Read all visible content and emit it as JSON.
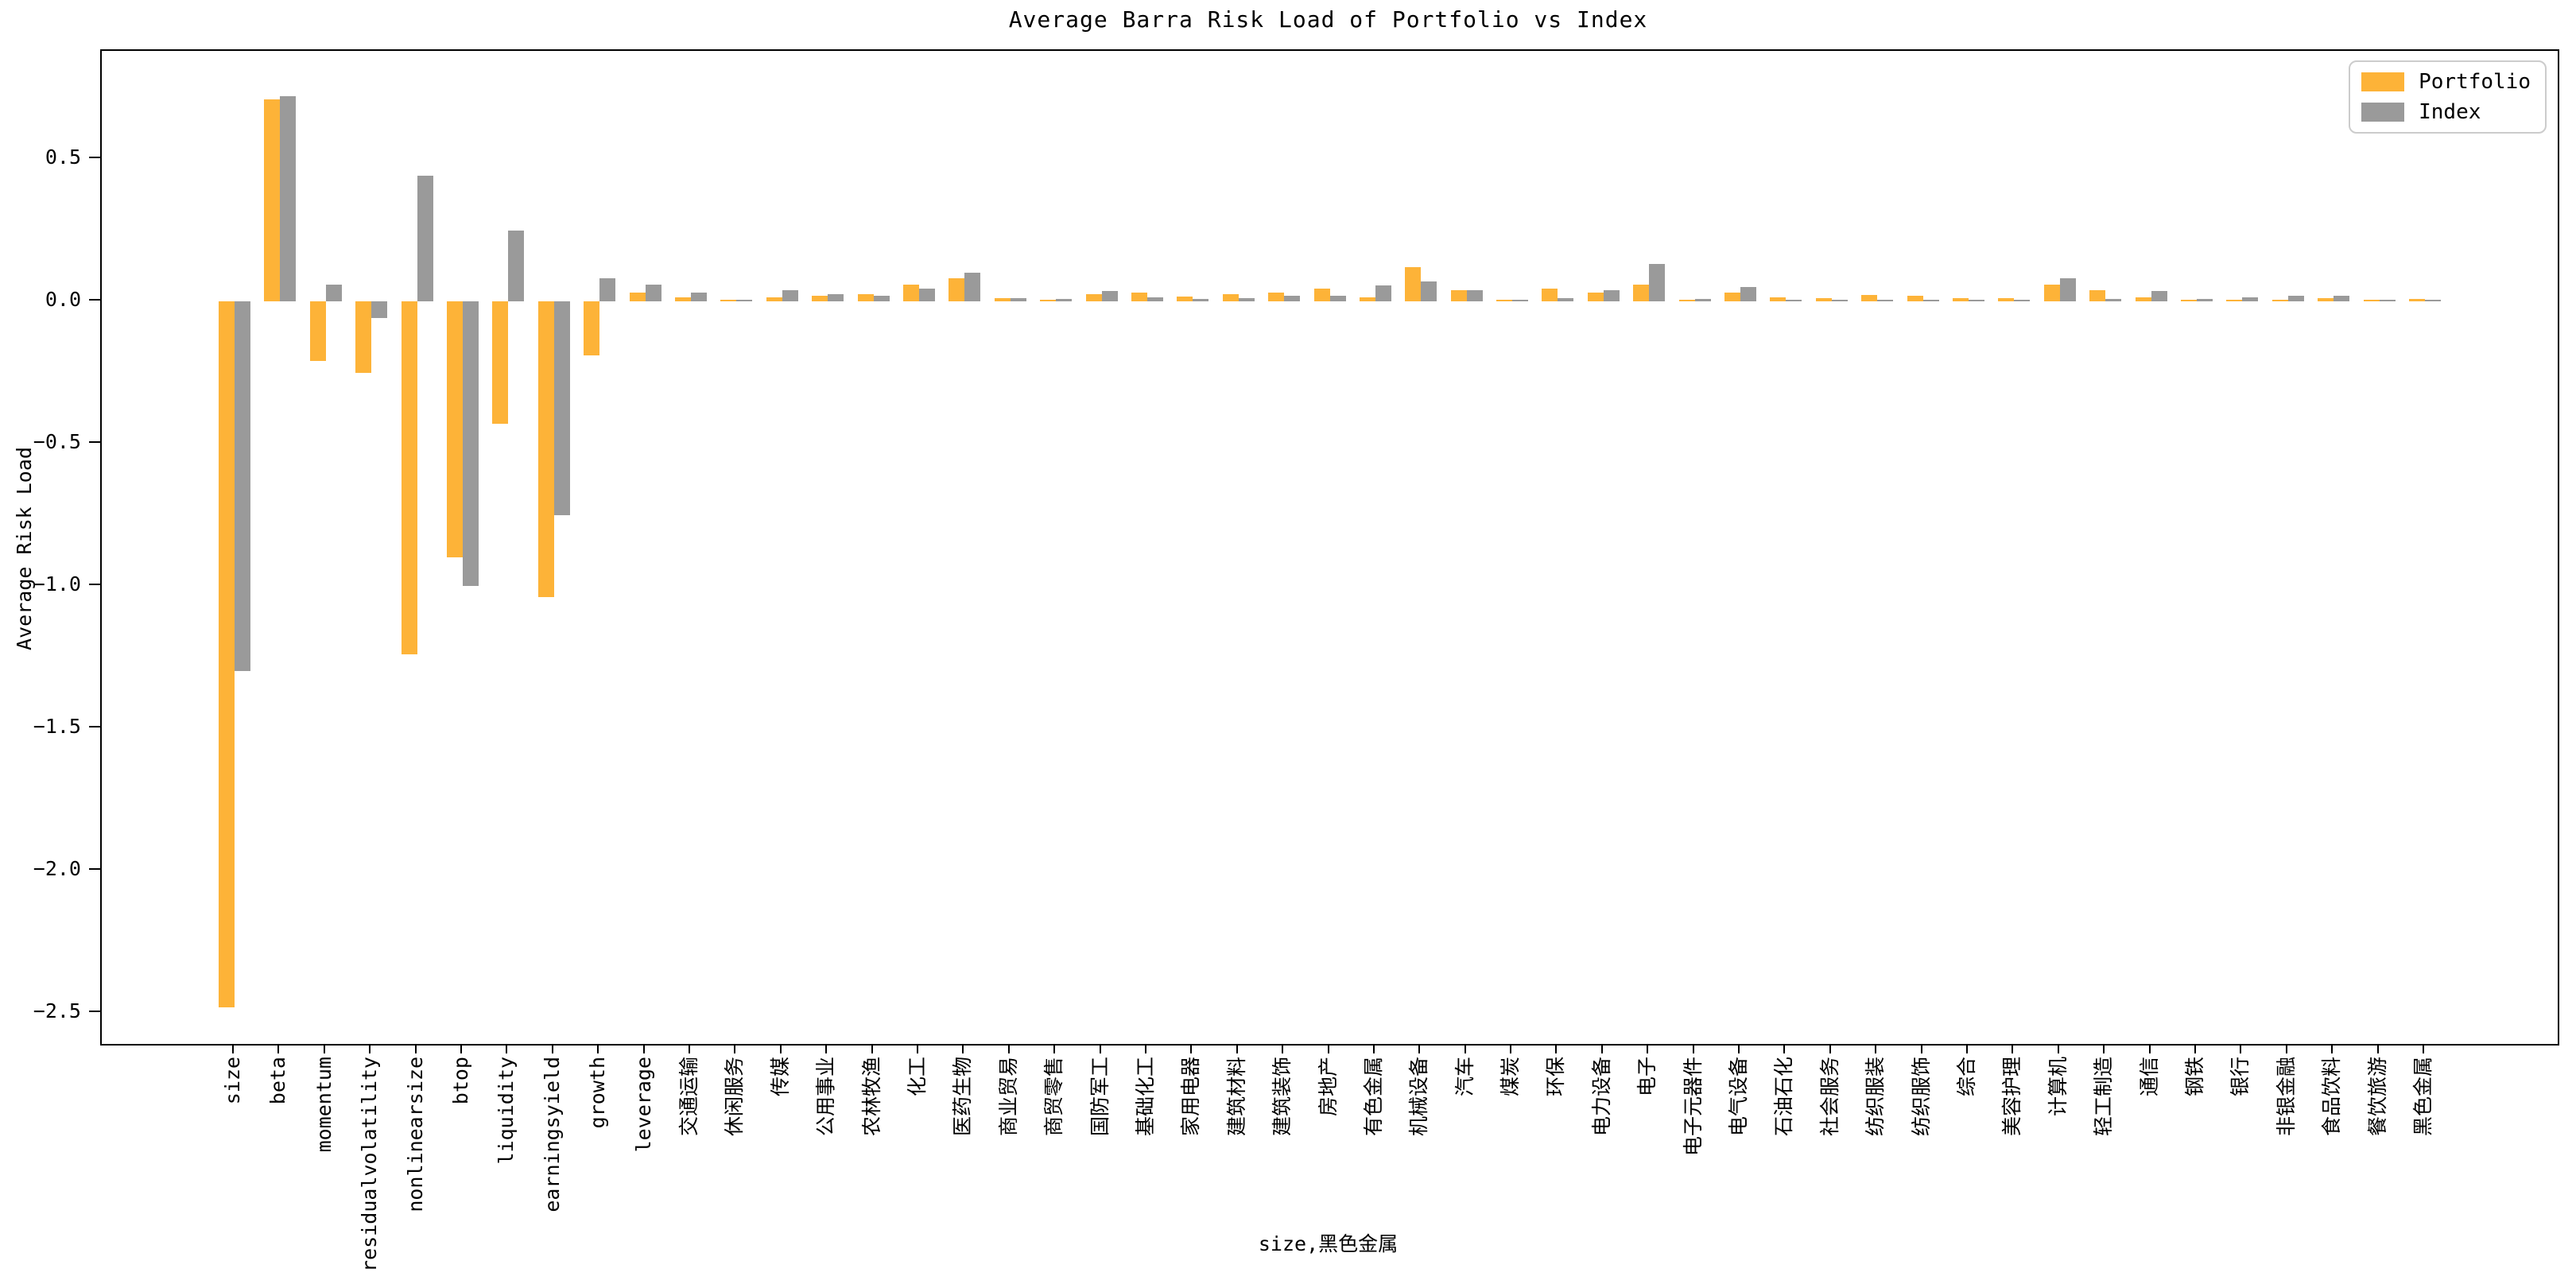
{
  "figure": {
    "background": "#ffffff",
    "frame_color": "#000000"
  },
  "chart_data": {
    "type": "bar",
    "title": "Average Barra Risk Load of Portfolio vs Index",
    "xlabel": "size,黑色金属",
    "ylabel": "Average Risk Load",
    "grid": false,
    "legend_position": "upper right",
    "ylim": [
      -2.61,
      0.88
    ],
    "yticks": [
      "0.5",
      "0.0",
      "-0.5",
      "-1.0",
      "-1.5",
      "-2.0",
      "-2.5"
    ],
    "ytick_values": [
      0.5,
      0.0,
      -0.5,
      -1.0,
      -1.5,
      -2.0,
      -2.5
    ],
    "categories": [
      "size",
      "beta",
      "momentum",
      "residualvolatility",
      "nonlinearsize",
      "btop",
      "liquidity",
      "earningsyield",
      "growth",
      "leverage",
      "交通运输",
      "休闲服务",
      "传媒",
      "公用事业",
      "农林牧渔",
      "化工",
      "医药生物",
      "商业贸易",
      "商贸零售",
      "国防军工",
      "基础化工",
      "家用电器",
      "建筑材料",
      "建筑装饰",
      "房地产",
      "有色金属",
      "机械设备",
      "汽车",
      "煤炭",
      "环保",
      "电力设备",
      "电子",
      "电子元器件",
      "电气设备",
      "石油石化",
      "社会服务",
      "纺织服装",
      "纺织服饰",
      "综合",
      "美容护理",
      "计算机",
      "轻工制造",
      "通信",
      "钢铁",
      "银行",
      "非银金融",
      "食品饮料",
      "餐饮旅游",
      "黑色金属"
    ],
    "series": [
      {
        "name": "Portfolio",
        "color": "#FDB338",
        "values": [
          -2.48,
          0.71,
          -0.21,
          -0.25,
          -1.24,
          -0.9,
          -0.43,
          -1.04,
          -0.19,
          0.03,
          0.015,
          0.005,
          0.015,
          0.02,
          0.025,
          0.06,
          0.08,
          0.012,
          0.005,
          0.025,
          0.03,
          0.018,
          0.025,
          0.03,
          0.045,
          0.015,
          0.12,
          0.04,
          0.004,
          0.045,
          0.03,
          0.06,
          0.004,
          0.03,
          0.015,
          0.012,
          0.022,
          0.02,
          0.01,
          0.012,
          0.06,
          0.04,
          0.015,
          0.004,
          0.003,
          0.003,
          0.01,
          0.001,
          0.008
        ]
      },
      {
        "name": "Index",
        "color": "#9A9A9A",
        "values": [
          -1.3,
          0.72,
          0.06,
          -0.06,
          0.44,
          -1.0,
          0.25,
          -0.75,
          0.08,
          0.06,
          0.03,
          0.005,
          0.04,
          0.025,
          0.02,
          0.045,
          0.1,
          0.01,
          0.008,
          0.035,
          0.015,
          0.008,
          0.01,
          0.02,
          0.02,
          0.055,
          0.07,
          0.04,
          0.004,
          0.01,
          0.04,
          0.13,
          0.008,
          0.05,
          0.004,
          0.005,
          0.005,
          0.006,
          0.004,
          0.005,
          0.08,
          0.008,
          0.035,
          0.007,
          0.015,
          0.02,
          0.02,
          0.003,
          0.004
        ]
      }
    ]
  }
}
